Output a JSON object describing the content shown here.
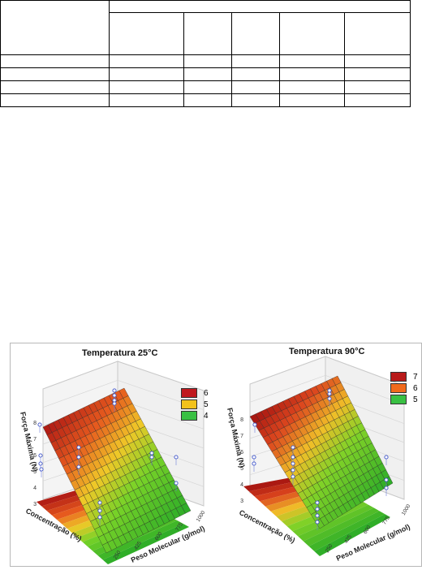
{
  "table": {
    "rows": 6,
    "cols": 6
  },
  "figures": [
    {
      "title": "Temperatura 25°C",
      "z_axis_label": "Força Máxima (N)",
      "z_ticks": [
        "3",
        "4",
        "5",
        "6",
        "7",
        "8"
      ],
      "x_axis_label": "Concentração (%)",
      "y_axis_label": "Peso Molecular (g/mol)",
      "y_ticks": [
        "250",
        "425",
        "600",
        "775",
        "1000"
      ],
      "legend": [
        {
          "label": "6",
          "color": "#c0191f"
        },
        {
          "label": "5",
          "color": "#f2c21b"
        },
        {
          "label": "4",
          "color": "#39c043"
        }
      ]
    },
    {
      "title": "Temperatura 90°C",
      "z_axis_label": "Força Máxima (N)",
      "z_ticks": [
        "3",
        "4",
        "5",
        "6",
        "7",
        "8"
      ],
      "x_axis_label": "Concentração (%)",
      "y_axis_label": "Peso Molecular (g/mol)",
      "y_ticks": [
        "250",
        "425",
        "600",
        "775",
        "1000"
      ],
      "legend": [
        {
          "label": "7",
          "color": "#b81a1a"
        },
        {
          "label": "6",
          "color": "#f06a1c"
        },
        {
          "label": "5",
          "color": "#39c043"
        }
      ]
    }
  ]
}
